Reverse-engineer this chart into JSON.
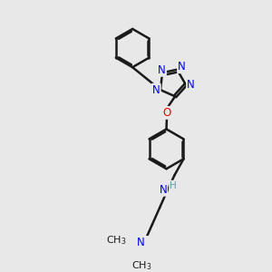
{
  "bg_color": "#e8e8e8",
  "bond_color": "#1a1a1a",
  "N_color": "#0000ee",
  "O_color": "#ee0000",
  "H_color": "#6699aa",
  "line_width": 1.8,
  "font_size": 8.5,
  "figsize": [
    3.0,
    3.0
  ],
  "dpi": 100,
  "xlim": [
    0,
    10
  ],
  "ylim": [
    0,
    10
  ]
}
